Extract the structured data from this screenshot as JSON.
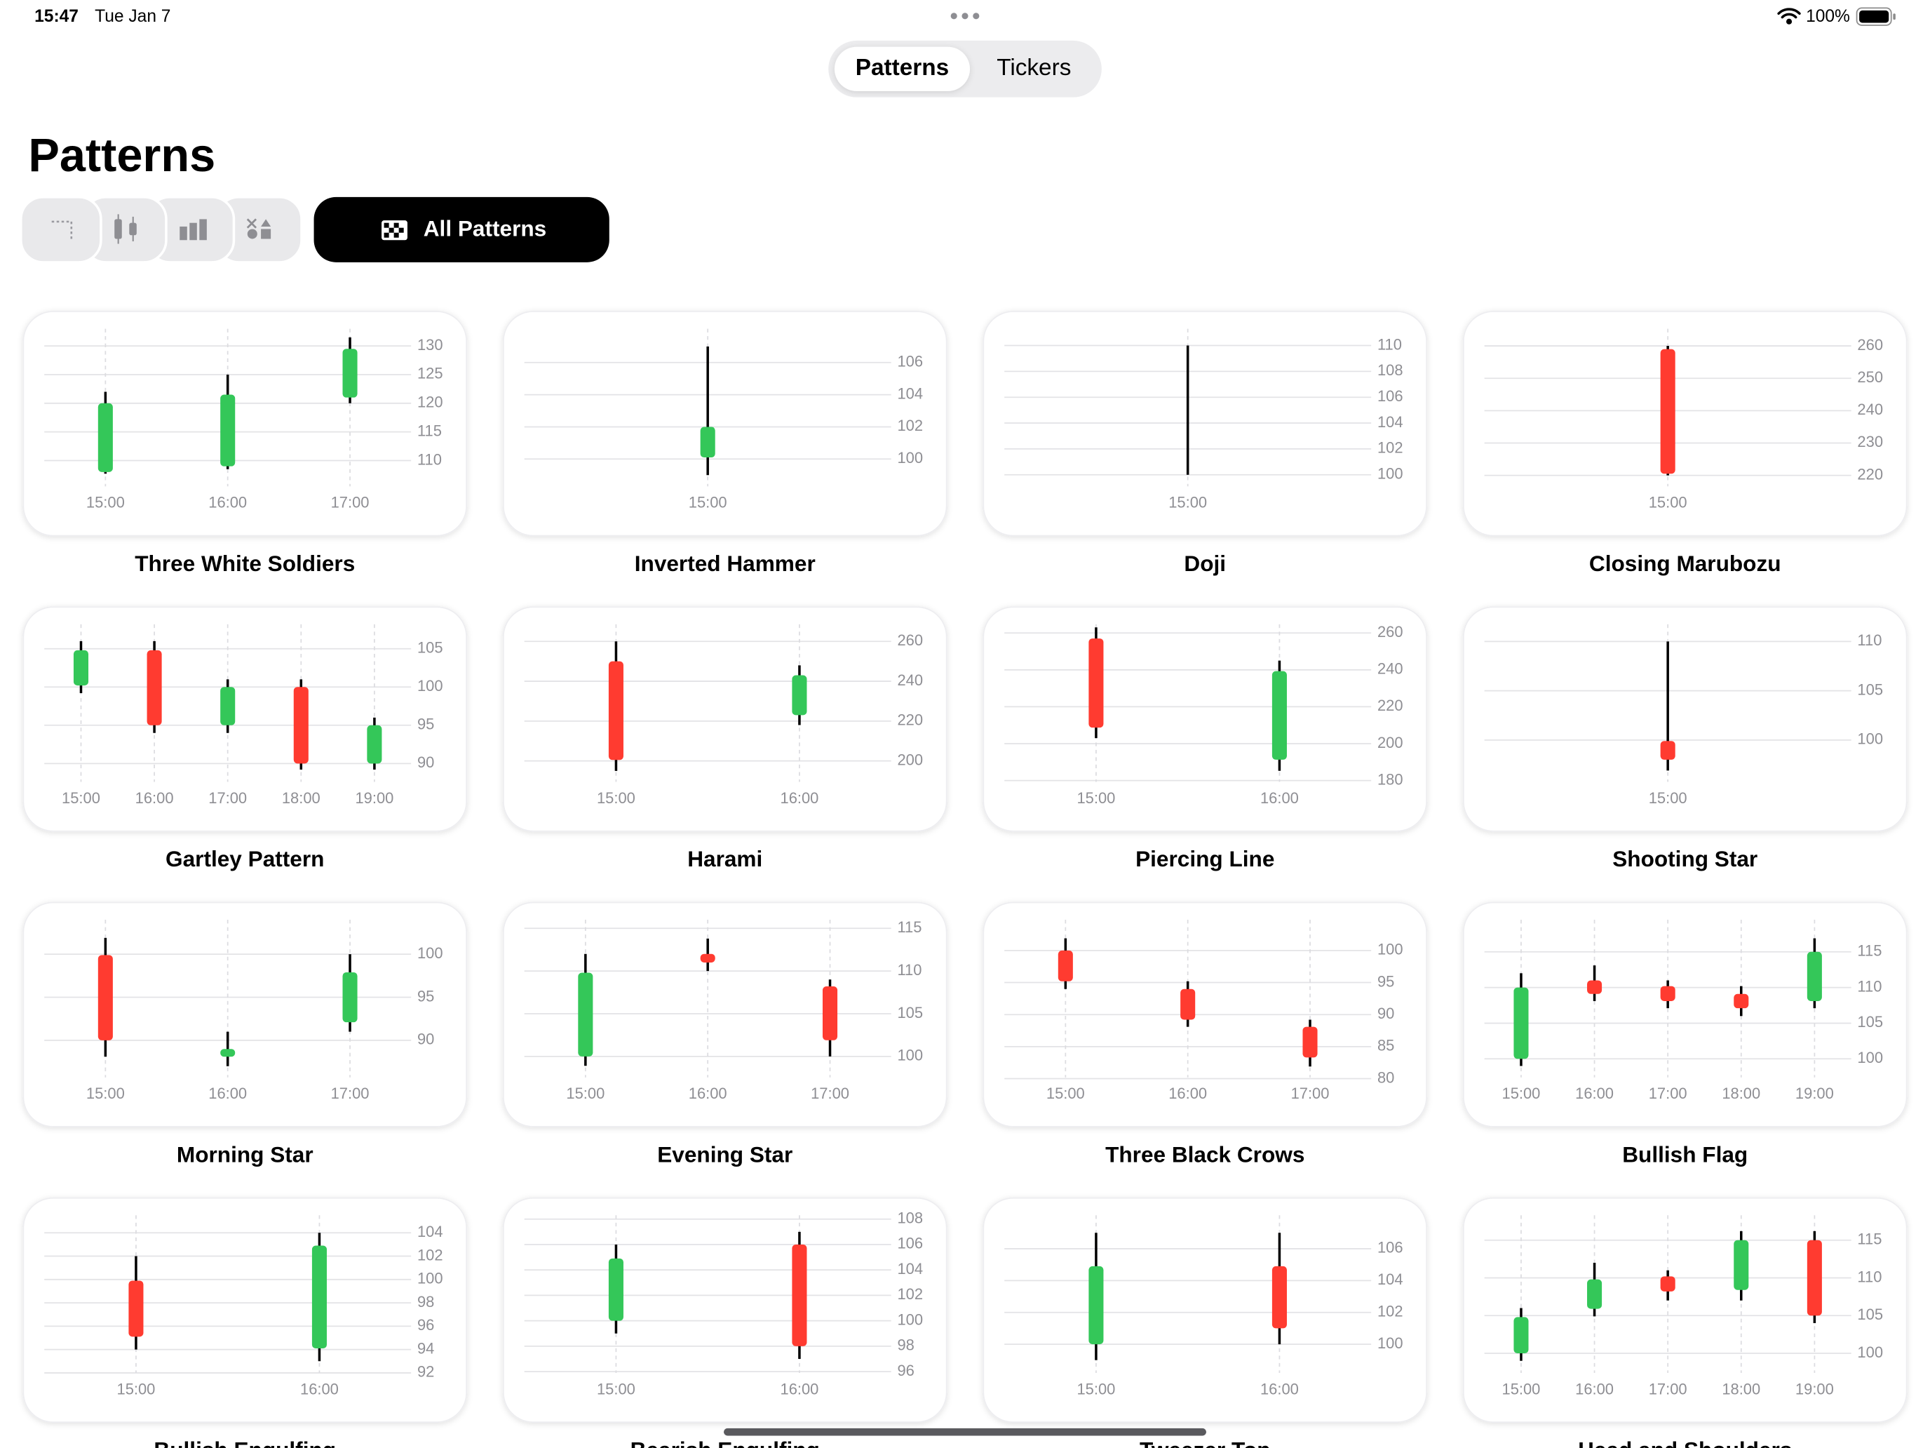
{
  "status_bar": {
    "time": "15:47",
    "date": "Tue Jan 7",
    "battery": "100%"
  },
  "segments": [
    "Patterns",
    "Tickers"
  ],
  "title": "Patterns",
  "filter": "All Patterns",
  "colors": {
    "up": "#34c759",
    "down": "#ff3b30",
    "flat": "#000000"
  },
  "cards": [
    {
      "name": "Three White Soldiers",
      "categories": [
        "15:00",
        "16:00",
        "17:00"
      ],
      "ylim": [
        105.5,
        133
      ],
      "yticks": [
        110,
        115,
        120,
        125,
        130
      ],
      "candles": [
        {
          "open": 108,
          "high": 122,
          "low": 107.7,
          "close": 120
        },
        {
          "open": 109,
          "high": 125,
          "low": 108.5,
          "close": 121.5
        },
        {
          "open": 121,
          "high": 131.5,
          "low": 120,
          "close": 129.5
        }
      ]
    },
    {
      "name": "Inverted Hammer",
      "categories": [
        "15:00"
      ],
      "ylim": [
        98.3,
        108.1
      ],
      "yticks": [
        100,
        102,
        104,
        106
      ],
      "candles": [
        {
          "open": 100.1,
          "high": 107,
          "low": 99,
          "close": 102
        }
      ]
    },
    {
      "name": "Doji",
      "categories": [
        "15:00"
      ],
      "ylim": [
        99.1,
        111.3
      ],
      "yticks": [
        100,
        102,
        104,
        106,
        108,
        110
      ],
      "candles": [
        {
          "open": 105,
          "high": 110,
          "low": 100,
          "close": 105
        }
      ]
    },
    {
      "name": "Closing Marubozu",
      "categories": [
        "15:00"
      ],
      "ylim": [
        216.6,
        265.3
      ],
      "yticks": [
        220,
        230,
        240,
        250,
        260
      ],
      "candles": [
        {
          "open": 259,
          "high": 260,
          "low": 220,
          "close": 220.5
        }
      ]
    },
    {
      "name": "Gartley Pattern",
      "categories": [
        "15:00",
        "16:00",
        "17:00",
        "18:00",
        "19:00"
      ],
      "ylim": [
        87.6,
        108.2
      ],
      "yticks": [
        90,
        95,
        100,
        105
      ],
      "candles": [
        {
          "open": 100.2,
          "high": 106,
          "low": 99.2,
          "close": 104.8
        },
        {
          "open": 104.8,
          "high": 106,
          "low": 94,
          "close": 95
        },
        {
          "open": 95,
          "high": 101,
          "low": 94,
          "close": 100
        },
        {
          "open": 100,
          "high": 101,
          "low": 89.2,
          "close": 90
        },
        {
          "open": 90,
          "high": 96,
          "low": 89.2,
          "close": 95
        }
      ]
    },
    {
      "name": "Harami",
      "categories": [
        "15:00",
        "16:00"
      ],
      "ylim": [
        189.5,
        268.6
      ],
      "yticks": [
        200,
        220,
        240,
        260
      ],
      "candles": [
        {
          "open": 250,
          "high": 260,
          "low": 195,
          "close": 200.5
        },
        {
          "open": 223,
          "high": 248,
          "low": 218,
          "close": 243
        }
      ]
    },
    {
      "name": "Piercing Line",
      "categories": [
        "15:00",
        "16:00"
      ],
      "ylim": [
        179.3,
        264.7
      ],
      "yticks": [
        180,
        200,
        220,
        240,
        260
      ],
      "candles": [
        {
          "open": 257,
          "high": 263,
          "low": 203,
          "close": 208.7
        },
        {
          "open": 191.3,
          "high": 245,
          "low": 185.3,
          "close": 239.3
        }
      ]
    },
    {
      "name": "Shooting Star",
      "categories": [
        "15:00"
      ],
      "ylim": [
        95.75,
        111.75
      ],
      "yticks": [
        100,
        105,
        110
      ],
      "candles": [
        {
          "open": 99.9,
          "high": 110,
          "low": 96.9,
          "close": 98
        }
      ]
    },
    {
      "name": "Morning Star",
      "categories": [
        "15:00",
        "16:00",
        "17:00"
      ],
      "ylim": [
        85.7,
        104
      ],
      "yticks": [
        90,
        95,
        100
      ],
      "candles": [
        {
          "open": 99.9,
          "high": 101.9,
          "low": 88.1,
          "close": 90
        },
        {
          "open": 88.1,
          "high": 91,
          "low": 87,
          "close": 89
        },
        {
          "open": 92.1,
          "high": 100,
          "low": 91,
          "close": 97.9
        }
      ]
    },
    {
      "name": "Evening Star",
      "categories": [
        "15:00",
        "16:00",
        "17:00"
      ],
      "ylim": [
        97.55,
        116
      ],
      "yticks": [
        100,
        105,
        110,
        115
      ],
      "candles": [
        {
          "open": 100,
          "high": 112,
          "low": 98.9,
          "close": 109.8
        },
        {
          "open": 112,
          "high": 113.8,
          "low": 110,
          "close": 111
        },
        {
          "open": 108.2,
          "high": 109,
          "low": 100,
          "close": 101.9
        }
      ]
    },
    {
      "name": "Three Black Crows",
      "categories": [
        "15:00",
        "16:00",
        "17:00"
      ],
      "ylim": [
        80.2,
        104.8
      ],
      "yticks": [
        80,
        85,
        90,
        95,
        100
      ],
      "candles": [
        {
          "open": 100,
          "high": 101.9,
          "low": 94,
          "close": 95.2
        },
        {
          "open": 94,
          "high": 95.2,
          "low": 88.1,
          "close": 89.2
        },
        {
          "open": 88.1,
          "high": 89.2,
          "low": 81.9,
          "close": 83.3
        }
      ]
    },
    {
      "name": "Bullish Flag",
      "categories": [
        "15:00",
        "16:00",
        "17:00",
        "18:00",
        "19:00"
      ],
      "ylim": [
        97.4,
        119.5
      ],
      "yticks": [
        100,
        105,
        110,
        115
      ],
      "candles": [
        {
          "open": 100,
          "high": 112,
          "low": 99,
          "close": 110
        },
        {
          "open": 111,
          "high": 113.1,
          "low": 108.1,
          "close": 109.1
        },
        {
          "open": 110.2,
          "high": 111,
          "low": 107.1,
          "close": 108.1
        },
        {
          "open": 109.1,
          "high": 110.2,
          "low": 106,
          "close": 107.1
        },
        {
          "open": 108.1,
          "high": 116.9,
          "low": 107.1,
          "close": 115
        }
      ]
    },
    {
      "name": "Bullish Engulfing",
      "categories": [
        "15:00",
        "16:00"
      ],
      "ylim": [
        92,
        105.5
      ],
      "yticks": [
        92,
        94,
        96,
        98,
        100,
        102,
        104
      ],
      "candles": [
        {
          "open": 99.9,
          "high": 102,
          "low": 94,
          "close": 95.1
        },
        {
          "open": 94.1,
          "high": 104,
          "low": 93,
          "close": 102.9
        }
      ]
    },
    {
      "name": "Bearish Engulfing",
      "categories": [
        "15:00",
        "16:00"
      ],
      "ylim": [
        95.9,
        108.3
      ],
      "yticks": [
        96,
        98,
        100,
        102,
        104,
        106,
        108
      ],
      "candles": [
        {
          "open": 100,
          "high": 106,
          "low": 99,
          "close": 104.9
        },
        {
          "open": 106,
          "high": 107,
          "low": 97,
          "close": 98
        }
      ]
    },
    {
      "name": "Tweezer Top",
      "categories": [
        "15:00",
        "16:00"
      ],
      "ylim": [
        98.2,
        108.1
      ],
      "yticks": [
        100,
        102,
        104,
        106
      ],
      "candles": [
        {
          "open": 100,
          "high": 107,
          "low": 99,
          "close": 104.9
        },
        {
          "open": 104.9,
          "high": 107,
          "low": 100,
          "close": 101
        }
      ]
    },
    {
      "name": "Head and Shoulders",
      "categories": [
        "15:00",
        "16:00",
        "17:00",
        "18:00",
        "19:00"
      ],
      "ylim": [
        97.4,
        118.3
      ],
      "yticks": [
        100,
        105,
        110,
        115
      ],
      "candles": [
        {
          "open": 100,
          "high": 106,
          "low": 99,
          "close": 104.8
        },
        {
          "open": 105.9,
          "high": 112,
          "low": 104.9,
          "close": 109.8
        },
        {
          "open": 110.2,
          "high": 111,
          "low": 107,
          "close": 108.2
        },
        {
          "open": 108.4,
          "high": 116.2,
          "low": 107,
          "close": 115
        },
        {
          "open": 115,
          "high": 116.2,
          "low": 104,
          "close": 105
        }
      ]
    }
  ]
}
